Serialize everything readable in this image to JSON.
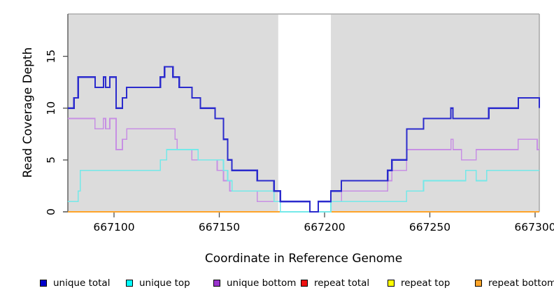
{
  "chart_data": {
    "type": "line",
    "subtype": "step-after",
    "title": "",
    "xlabel": "Coordinate in Reference Genome",
    "ylabel": "Read Coverage Depth",
    "xlim": [
      667078,
      667302
    ],
    "ylim": [
      0,
      19
    ],
    "x_ticks": [
      667100,
      667150,
      667200,
      667250,
      667300
    ],
    "x_tick_labels": [
      "667100",
      "667150",
      "667200",
      "667250",
      "667300"
    ],
    "y_ticks": [
      0,
      5,
      10,
      15
    ],
    "y_tick_labels": [
      "0",
      "5",
      "10",
      "15"
    ],
    "grid": false,
    "plot_background": "#DCDCDC",
    "gap_region": {
      "start": 667178,
      "end": 667203,
      "fill": "#FFFFFF"
    },
    "legend_position": "bottom",
    "x_end": 667302,
    "series": [
      {
        "name": "unique total",
        "line_color": "#2B2BCD",
        "legend_color": "#0000CC",
        "line_width": 2.2,
        "points": [
          [
            667078,
            10
          ],
          [
            667081,
            11
          ],
          [
            667083,
            13
          ],
          [
            667091,
            12
          ],
          [
            667095,
            13
          ],
          [
            667096,
            12
          ],
          [
            667098,
            13
          ],
          [
            667101,
            10
          ],
          [
            667104,
            11
          ],
          [
            667106,
            12
          ],
          [
            667122,
            13
          ],
          [
            667124,
            14
          ],
          [
            667128,
            13
          ],
          [
            667131,
            12
          ],
          [
            667137,
            11
          ],
          [
            667141,
            10
          ],
          [
            667148,
            9
          ],
          [
            667152,
            7
          ],
          [
            667154,
            5
          ],
          [
            667156,
            4
          ],
          [
            667168,
            3
          ],
          [
            667176,
            2
          ],
          [
            667179,
            1
          ],
          [
            667193,
            0
          ],
          [
            667197,
            1
          ],
          [
            667203,
            2
          ],
          [
            667208,
            3
          ],
          [
            667230,
            4
          ],
          [
            667232,
            5
          ],
          [
            667239,
            8
          ],
          [
            667247,
            9
          ],
          [
            667260,
            10
          ],
          [
            667261,
            9
          ],
          [
            667278,
            10
          ],
          [
            667292,
            11
          ],
          [
            667302,
            10
          ]
        ]
      },
      {
        "name": "unique top",
        "line_color": "#74E9E9",
        "legend_color": "#00FFFF",
        "line_width": 1.6,
        "points": [
          [
            667078,
            1
          ],
          [
            667083,
            2
          ],
          [
            667084,
            4
          ],
          [
            667122,
            5
          ],
          [
            667125,
            6
          ],
          [
            667140,
            5
          ],
          [
            667152,
            4
          ],
          [
            667154,
            3
          ],
          [
            667156,
            2
          ],
          [
            667176,
            1
          ],
          [
            667179,
            0
          ],
          [
            667203,
            1
          ],
          [
            667239,
            2
          ],
          [
            667247,
            3
          ],
          [
            667267,
            4
          ],
          [
            667272,
            3
          ],
          [
            667277,
            4
          ]
        ]
      },
      {
        "name": "unique bottom",
        "line_color": "#C78FE4",
        "legend_color": "#9933CC",
        "line_width": 1.6,
        "points": [
          [
            667078,
            9
          ],
          [
            667091,
            8
          ],
          [
            667095,
            9
          ],
          [
            667096,
            8
          ],
          [
            667098,
            9
          ],
          [
            667101,
            6
          ],
          [
            667104,
            7
          ],
          [
            667106,
            8
          ],
          [
            667129,
            7
          ],
          [
            667130,
            6
          ],
          [
            667137,
            5
          ],
          [
            667149,
            4
          ],
          [
            667152,
            3
          ],
          [
            667155,
            2
          ],
          [
            667168,
            1
          ],
          [
            667193,
            0
          ],
          [
            667197,
            1
          ],
          [
            667208,
            2
          ],
          [
            667230,
            3
          ],
          [
            667232,
            4
          ],
          [
            667239,
            6
          ],
          [
            667260,
            7
          ],
          [
            667261,
            6
          ],
          [
            667265,
            5
          ],
          [
            667272,
            6
          ],
          [
            667292,
            7
          ],
          [
            667301,
            6
          ]
        ]
      },
      {
        "name": "repeat total",
        "line_color": "#DD1111",
        "legend_color": "#EE1111",
        "line_width": 1.6,
        "points": [
          [
            667078,
            0
          ]
        ]
      },
      {
        "name": "repeat top",
        "line_color": "#FFFF00",
        "legend_color": "#FFFF00",
        "line_width": 1.6,
        "points": [
          [
            667078,
            0
          ]
        ]
      },
      {
        "name": "repeat bottom",
        "line_color": "#FFA428",
        "legend_color": "#FFA428",
        "line_width": 1.6,
        "points": [
          [
            667078,
            0
          ]
        ]
      }
    ],
    "draw_order": [
      "repeat total",
      "repeat top",
      "repeat bottom",
      "unique bottom",
      "unique top",
      "unique total"
    ]
  },
  "layout_colors": {
    "box_top_right": "#ABABAB",
    "axis_line": "#4D4D4D",
    "tick": "#4D4D4D",
    "text": "#000000"
  },
  "legend_item_x": [
    57,
    180,
    305,
    430,
    554,
    679
  ]
}
